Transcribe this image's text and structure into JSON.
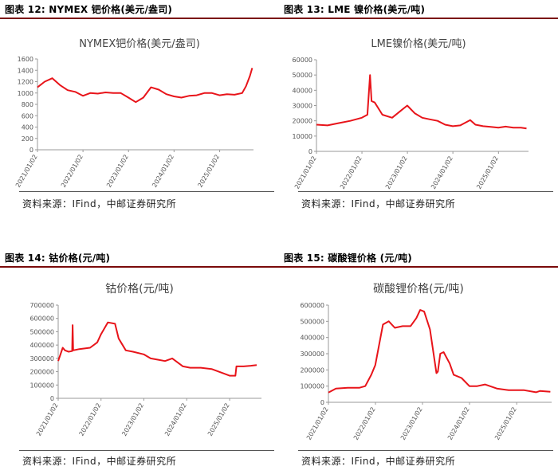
{
  "panels": [
    {
      "header": "图表 12: NYMEX 钯价格(美元/盎司)",
      "source": "资料来源：IFind，中邮证券研究所"
    },
    {
      "header": "图表 13: LME 镍价格(美元/吨)",
      "source": "资料来源：IFind，中邮证券研究所"
    },
    {
      "header": "图表 14: 钴价格(元/吨)",
      "source": "资料来源：IFind，中邮证券研究所"
    },
    {
      "header": "图表 15: 碳酸锂价格 (元/吨)",
      "source": "资料来源：IFind，中邮证券研究所"
    }
  ],
  "chart_data": [
    {
      "type": "line",
      "title": "NYMEX钯价格(美元/盎司)",
      "color": "#e8141a",
      "ylim": [
        0,
        1600
      ],
      "yticks": [
        0,
        200,
        400,
        600,
        800,
        1000,
        1200,
        1400,
        1600
      ],
      "xlim": [
        "2021/01/02",
        "2025/09/30"
      ],
      "xtick_labels": [
        "2021/01/02",
        "2022/01/02",
        "2023/01/02",
        "2024/01/02",
        "2025/01/02"
      ],
      "x": [
        "2021/01/02",
        "2021/03/01",
        "2021/05/01",
        "2021/07/01",
        "2021/09/01",
        "2021/11/01",
        "2022/01/01",
        "2022/03/01",
        "2022/05/01",
        "2022/07/01",
        "2022/09/01",
        "2022/11/01",
        "2023/01/01",
        "2023/03/01",
        "2023/05/01",
        "2023/07/01",
        "2023/09/01",
        "2023/11/01",
        "2024/01/01",
        "2024/03/01",
        "2024/05/01",
        "2024/07/01",
        "2024/09/01",
        "2024/11/01",
        "2025/01/01",
        "2025/03/01",
        "2025/05/01",
        "2025/07/01",
        "2025/08/01",
        "2025/09/01",
        "2025/09/20"
      ],
      "y": [
        1100,
        1200,
        1260,
        1140,
        1050,
        1020,
        950,
        1000,
        990,
        1010,
        1000,
        1000,
        920,
        840,
        920,
        1100,
        1060,
        980,
        940,
        920,
        950,
        960,
        1000,
        1000,
        960,
        980,
        970,
        1000,
        1120,
        1300,
        1440
      ]
    },
    {
      "type": "line",
      "title": "LME镍价格(美元/吨)",
      "color": "#e8141a",
      "ylim": [
        0,
        60000
      ],
      "yticks": [
        0,
        10000,
        20000,
        30000,
        40000,
        50000,
        60000
      ],
      "xlim": [
        "2021/01/02",
        "2025/08/31"
      ],
      "xtick_labels": [
        "2021/01/02",
        "2022/01/02",
        "2023/01/02",
        "2024/01/02",
        "2025/01/02"
      ],
      "x": [
        "2021/01/02",
        "2021/04/01",
        "2021/07/01",
        "2021/10/01",
        "2022/01/01",
        "2022/02/15",
        "2022/03/08",
        "2022/03/20",
        "2022/04/15",
        "2022/06/15",
        "2022/09/01",
        "2022/11/15",
        "2023/01/01",
        "2023/03/01",
        "2023/05/01",
        "2023/07/01",
        "2023/09/01",
        "2023/11/01",
        "2024/01/01",
        "2024/03/01",
        "2024/05/20",
        "2024/07/01",
        "2024/09/01",
        "2024/11/01",
        "2025/01/01",
        "2025/03/01",
        "2025/05/01",
        "2025/07/01",
        "2025/08/15"
      ],
      "y": [
        17500,
        17000,
        18500,
        20000,
        22000,
        24000,
        50000,
        33000,
        32000,
        24000,
        22000,
        27000,
        30000,
        25000,
        22000,
        21000,
        20000,
        17500,
        16500,
        17000,
        20500,
        17500,
        16500,
        16000,
        15500,
        16200,
        15500,
        15500,
        15000
      ]
    },
    {
      "type": "line",
      "title": "钴价格(元/吨)",
      "color": "#e8141a",
      "ylim": [
        0,
        700000
      ],
      "yticks": [
        0,
        100000,
        200000,
        300000,
        400000,
        500000,
        600000,
        700000
      ],
      "xlim": [
        "2021/01/02",
        "2025/09/30"
      ],
      "xtick_labels": [
        "2021/01/02",
        "2022/01/02",
        "2023/01/02",
        "2024/01/02",
        "2025/01/02"
      ],
      "x": [
        "2021/01/02",
        "2021/02/10",
        "2021/03/01",
        "2021/04/01",
        "2021/05/01",
        "2021/05/05",
        "2021/05/10",
        "2021/07/01",
        "2021/10/01",
        "2021/12/01",
        "2022/01/01",
        "2022/03/01",
        "2022/05/01",
        "2022/06/01",
        "2022/08/01",
        "2022/10/01",
        "2023/01/01",
        "2023/03/01",
        "2023/05/01",
        "2023/07/01",
        "2023/09/01",
        "2023/12/01",
        "2024/02/01",
        "2024/05/01",
        "2024/08/01",
        "2024/11/01",
        "2025/01/01",
        "2025/02/20",
        "2025/03/01",
        "2025/05/01",
        "2025/07/01",
        "2025/08/20"
      ],
      "y": [
        280000,
        380000,
        360000,
        350000,
        355000,
        550000,
        360000,
        370000,
        380000,
        420000,
        480000,
        570000,
        560000,
        450000,
        360000,
        350000,
        330000,
        300000,
        290000,
        280000,
        300000,
        240000,
        230000,
        230000,
        220000,
        190000,
        170000,
        170000,
        240000,
        240000,
        245000,
        250000
      ]
    },
    {
      "type": "line",
      "title": "碳酸锂价格(元/吨)",
      "color": "#e8141a",
      "ylim": [
        0,
        600000
      ],
      "yticks": [
        0,
        100000,
        200000,
        300000,
        400000,
        500000,
        600000
      ],
      "xlim": [
        "2021/01/02",
        "2025/09/30"
      ],
      "xtick_labels": [
        "2021/01/02",
        "2022/01/02",
        "2023/01/02",
        "2024/01/02",
        "2025/01/02"
      ],
      "x": [
        "2021/01/02",
        "2021/03/01",
        "2021/06/01",
        "2021/09/01",
        "2021/10/15",
        "2021/12/01",
        "2022/01/01",
        "2022/03/01",
        "2022/04/15",
        "2022/06/01",
        "2022/08/01",
        "2022/10/01",
        "2022/11/15",
        "2022/12/15",
        "2023/01/15",
        "2023/03/01",
        "2023/04/20",
        "2023/05/01",
        "2023/05/20",
        "2023/06/15",
        "2023/08/01",
        "2023/09/01",
        "2023/11/01",
        "2024/01/01",
        "2024/03/01",
        "2024/05/01",
        "2024/08/01",
        "2024/11/01",
        "2025/01/01",
        "2025/03/01",
        "2025/06/01",
        "2025/07/01",
        "2025/09/20"
      ],
      "y": [
        60000,
        85000,
        90000,
        90000,
        100000,
        170000,
        230000,
        480000,
        500000,
        460000,
        470000,
        470000,
        520000,
        570000,
        560000,
        450000,
        180000,
        190000,
        300000,
        310000,
        240000,
        170000,
        150000,
        100000,
        100000,
        110000,
        85000,
        75000,
        75000,
        75000,
        62000,
        70000,
        65000
      ]
    }
  ]
}
